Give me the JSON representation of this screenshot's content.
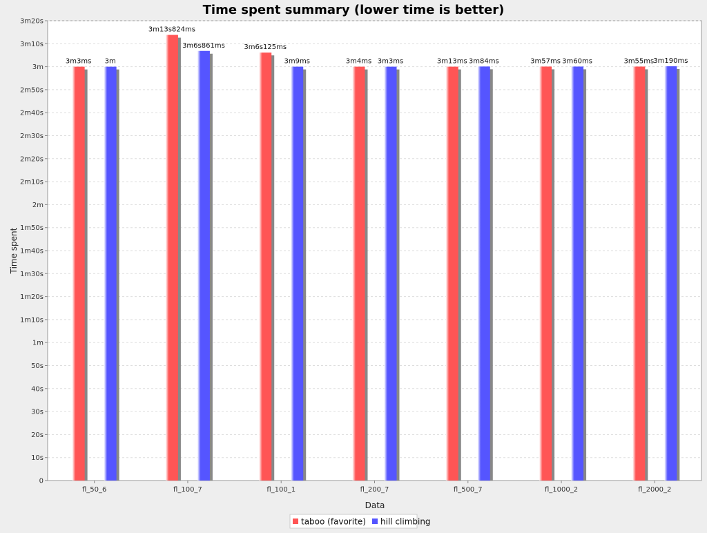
{
  "chart_data": {
    "type": "bar",
    "title": "Time spent summary (lower time is better)",
    "xlabel": "Data",
    "ylabel": "Time spent",
    "categories": [
      "fl_50_6",
      "fl_100_7",
      "fl_100_1",
      "fl_200_7",
      "fl_500_7",
      "fl_1000_2",
      "fl_2000_2"
    ],
    "series": [
      {
        "name": "taboo (favorite)",
        "color": "#ff5555",
        "values": [
          180.003,
          193.824,
          186.125,
          180.004,
          180.013,
          180.057,
          180.055
        ],
        "labels": [
          "3m3ms",
          "3m13s824ms",
          "3m6s125ms",
          "3m4ms",
          "3m13ms",
          "3m57ms",
          "3m55ms"
        ]
      },
      {
        "name": "hill climbing",
        "color": "#5555ff",
        "values": [
          180.0,
          186.861,
          180.009,
          180.003,
          180.084,
          180.06,
          180.19
        ],
        "labels": [
          "3m",
          "3m6s861ms",
          "3m9ms",
          "3m3ms",
          "3m84ms",
          "3m60ms",
          "3m190ms"
        ]
      }
    ],
    "ylim": [
      0,
      200
    ],
    "y_ticks": [
      {
        "value": 0,
        "label": "0"
      },
      {
        "value": 10,
        "label": "10s"
      },
      {
        "value": 20,
        "label": "20s"
      },
      {
        "value": 30,
        "label": "30s"
      },
      {
        "value": 40,
        "label": "40s"
      },
      {
        "value": 50,
        "label": "50s"
      },
      {
        "value": 60,
        "label": "1m"
      },
      {
        "value": 70,
        "label": "1m10s"
      },
      {
        "value": 80,
        "label": "1m20s"
      },
      {
        "value": 90,
        "label": "1m30s"
      },
      {
        "value": 100,
        "label": "1m40s"
      },
      {
        "value": 110,
        "label": "1m50s"
      },
      {
        "value": 120,
        "label": "2m"
      },
      {
        "value": 130,
        "label": "2m10s"
      },
      {
        "value": 140,
        "label": "2m20s"
      },
      {
        "value": 150,
        "label": "2m30s"
      },
      {
        "value": 160,
        "label": "2m40s"
      },
      {
        "value": 170,
        "label": "2m50s"
      },
      {
        "value": 180,
        "label": "3m"
      },
      {
        "value": 190,
        "label": "3m10s"
      },
      {
        "value": 200,
        "label": "3m20s"
      }
    ],
    "grid": true,
    "legend_position": "bottom"
  }
}
